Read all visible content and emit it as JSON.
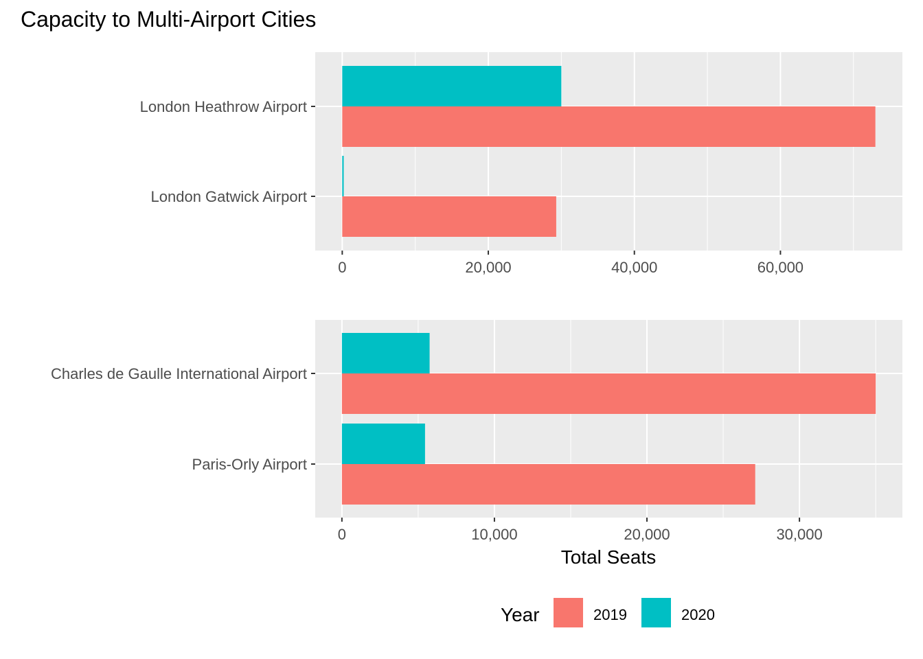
{
  "chart_data": {
    "type": "bar",
    "orientation": "horizontal",
    "title": "Capacity to Multi-Airport Cities",
    "xlabel": "Total Seats",
    "legend": {
      "title": "Year",
      "position": "bottom",
      "entries": [
        {
          "label": "2019",
          "color": "#F8766D"
        },
        {
          "label": "2020",
          "color": "#00BFC4"
        }
      ]
    },
    "grid": true,
    "panels": [
      {
        "categories": [
          "London Heathrow Airport",
          "London Gatwick Airport"
        ],
        "series": [
          {
            "name": "2019",
            "values": [
              73000,
              29300
            ]
          },
          {
            "name": "2020",
            "values": [
              30000,
              200
            ]
          }
        ],
        "xlim": [
          -3700,
          76700
        ],
        "xticks": [
          0,
          20000,
          40000,
          60000
        ],
        "xtick_labels": [
          "0",
          "20,000",
          "40,000",
          "60,000"
        ]
      },
      {
        "categories": [
          "Charles de Gaulle International Airport",
          "Paris-Orly Airport"
        ],
        "series": [
          {
            "name": "2019",
            "values": [
              35000,
              27100
            ]
          },
          {
            "name": "2020",
            "values": [
              5750,
              5450
            ]
          }
        ],
        "xlim": [
          -1750,
          36750
        ],
        "xticks": [
          0,
          10000,
          20000,
          30000
        ],
        "xtick_labels": [
          "0",
          "10,000",
          "20,000",
          "30,000"
        ]
      }
    ]
  }
}
